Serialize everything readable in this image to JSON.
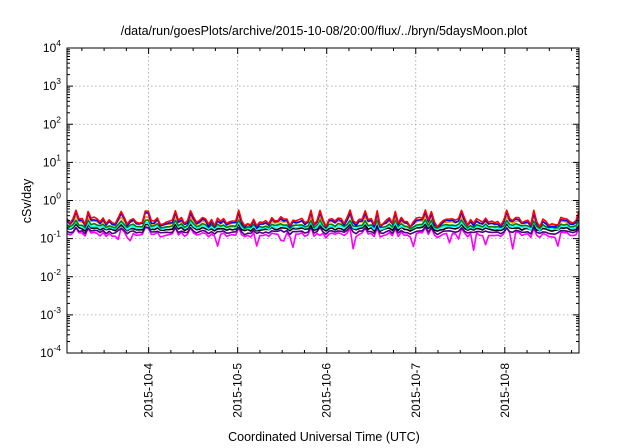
{
  "chart_data": {
    "type": "line",
    "title": "/data/run/goesPlots/archive/2015-10-08/20:00/flux/../bryn/5daysMoon.plot",
    "xlabel": "Coordinated Universal Time (UTC)",
    "ylabel": "cSv/day",
    "yscale": "log",
    "ylim": [
      0.0001,
      10000
    ],
    "xlim": [
      "2015-10-03 02:00",
      "2015-10-08 20:00"
    ],
    "y_ticks": [
      {
        "base": "10",
        "exp": "-4",
        "value": 0.0001
      },
      {
        "base": "10",
        "exp": "-3",
        "value": 0.001
      },
      {
        "base": "10",
        "exp": "-2",
        "value": 0.01
      },
      {
        "base": "10",
        "exp": "-1",
        "value": 0.1
      },
      {
        "base": "10",
        "exp": "0",
        "value": 1
      },
      {
        "base": "10",
        "exp": "1",
        "value": 10
      },
      {
        "base": "10",
        "exp": "2",
        "value": 100
      },
      {
        "base": "10",
        "exp": "3",
        "value": 1000
      },
      {
        "base": "10",
        "exp": "4",
        "value": 10000
      }
    ],
    "x_ticks": [
      "2015-10-4",
      "2015-10-5",
      "2015-10-6",
      "2015-10-7",
      "2015-10-8"
    ],
    "grid": true,
    "legend": "none",
    "series": [
      {
        "color": "#ff00ff",
        "base": 0.13,
        "spread": 0.18,
        "dips": true
      },
      {
        "color": "#4b0082",
        "base": 0.15,
        "spread": 0.12
      },
      {
        "color": "#000000",
        "base": 0.18,
        "spread": 0.12
      },
      {
        "color": "#00ffff",
        "base": 0.2,
        "spread": 0.14
      },
      {
        "color": "#008000",
        "base": 0.22,
        "spread": 0.15
      },
      {
        "color": "#ff8c00",
        "base": 0.26,
        "spread": 0.18
      },
      {
        "color": "#0000ff",
        "base": 0.27,
        "spread": 0.28
      },
      {
        "color": "#ff0000",
        "base": 0.3,
        "spread": 0.3
      }
    ]
  }
}
